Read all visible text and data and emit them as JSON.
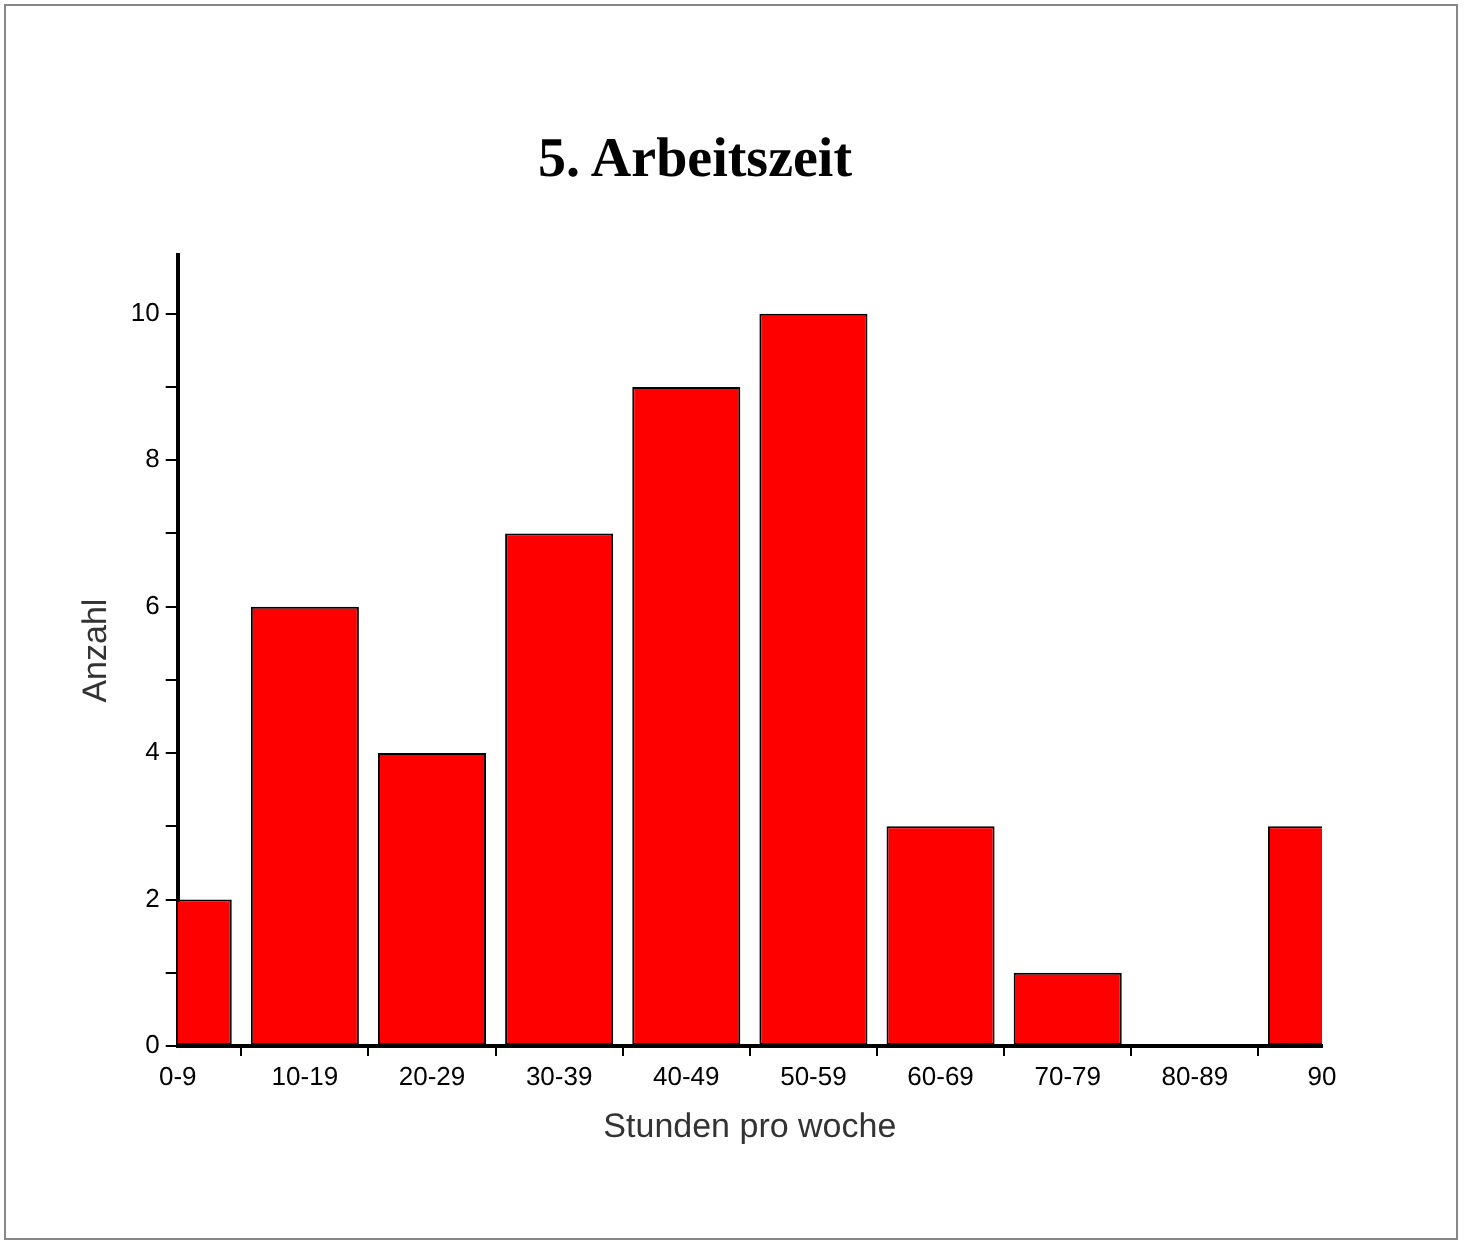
{
  "chart_data": {
    "type": "bar",
    "title": "5. Arbeitszeit",
    "xlabel": "Stunden pro woche",
    "ylabel": "Anzahl",
    "categories": [
      "0-9",
      "10-19",
      "20-29",
      "30-39",
      "40-49",
      "50-59",
      "60-69",
      "70-79",
      "80-89",
      "90"
    ],
    "values": [
      2,
      6,
      4,
      7,
      9,
      10,
      3,
      1,
      0,
      3
    ],
    "color": "#ff0000",
    "ylim": [
      0,
      10.8
    ],
    "yticks": [
      0,
      {
        "value": 1,
        "label": null
      },
      2,
      {
        "value": 3,
        "label": null
      },
      4,
      {
        "value": 5,
        "label": null
      },
      6,
      {
        "value": 7,
        "label": null
      },
      8,
      {
        "value": 9,
        "label": null
      },
      10
    ],
    "grid": false,
    "legend": false
  }
}
